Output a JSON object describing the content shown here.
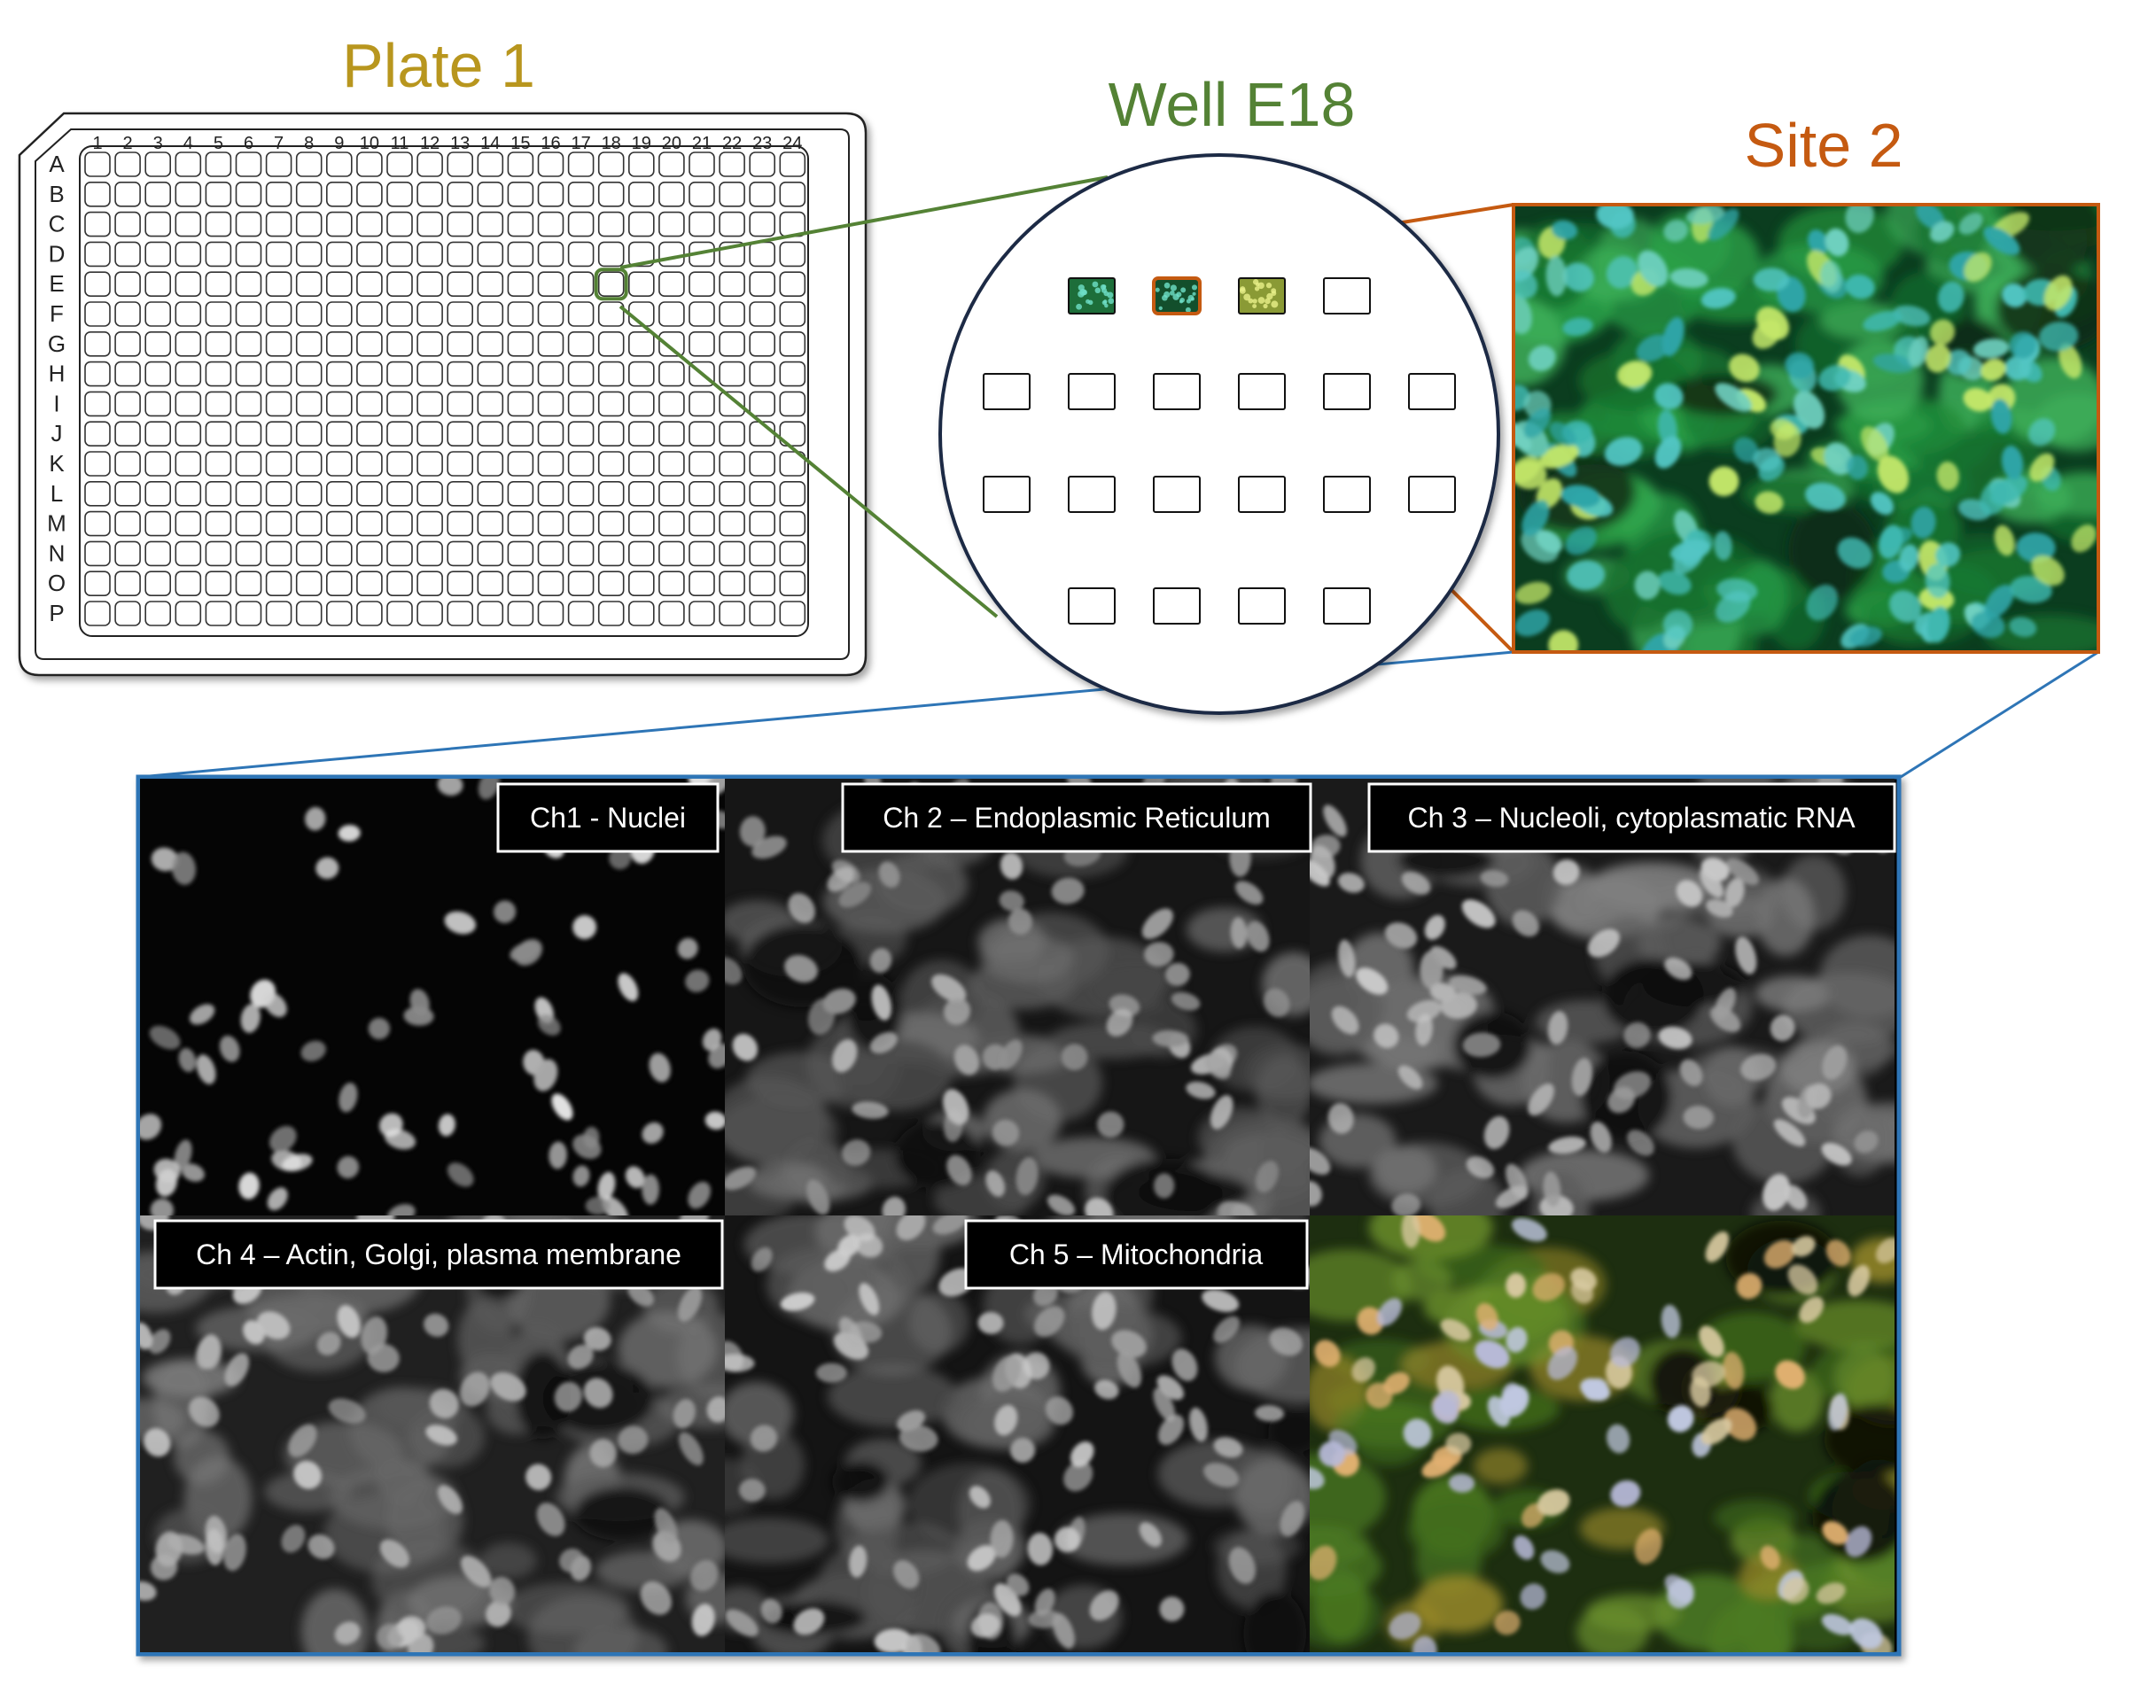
{
  "plate": {
    "title": "Plate 1",
    "title_color": "#B8961E",
    "columns": [
      "1",
      "2",
      "3",
      "4",
      "5",
      "6",
      "7",
      "8",
      "9",
      "10",
      "11",
      "12",
      "13",
      "14",
      "15",
      "16",
      "17",
      "18",
      "19",
      "20",
      "21",
      "22",
      "23",
      "24"
    ],
    "rows": [
      "A",
      "B",
      "C",
      "D",
      "E",
      "F",
      "G",
      "H",
      "I",
      "J",
      "K",
      "L",
      "M",
      "N",
      "O",
      "P"
    ],
    "highlighted_well": {
      "row": "E",
      "column": "18"
    },
    "highlight_color": "#548235"
  },
  "well": {
    "title": "Well E18",
    "title_color": "#548235",
    "site_rows": [
      4,
      6,
      6,
      4
    ],
    "acquired_sites": [
      1,
      2,
      3
    ],
    "selected_site": 2
  },
  "site": {
    "title": "Site 2",
    "title_color": "#C55A11",
    "image": "composite-fluorescence-image"
  },
  "channels": {
    "border_color": "#2E75B6",
    "panels": [
      {
        "label": "Ch1 - Nuclei",
        "image": "nuclei-grayscale-image"
      },
      {
        "label": "Ch 2 – Endoplasmic Reticulum",
        "image": "er-grayscale-image"
      },
      {
        "label": "Ch 3 – Nucleoli, cytoplasmatic RNA",
        "image": "rna-grayscale-image"
      },
      {
        "label": "Ch 4 – Actin, Golgi, plasma membrane",
        "image": "actin-grayscale-image"
      },
      {
        "label": "Ch 5 – Mitochondria",
        "image": "mito-grayscale-image"
      },
      {
        "label": "",
        "image": "merged-composite-image"
      }
    ]
  }
}
